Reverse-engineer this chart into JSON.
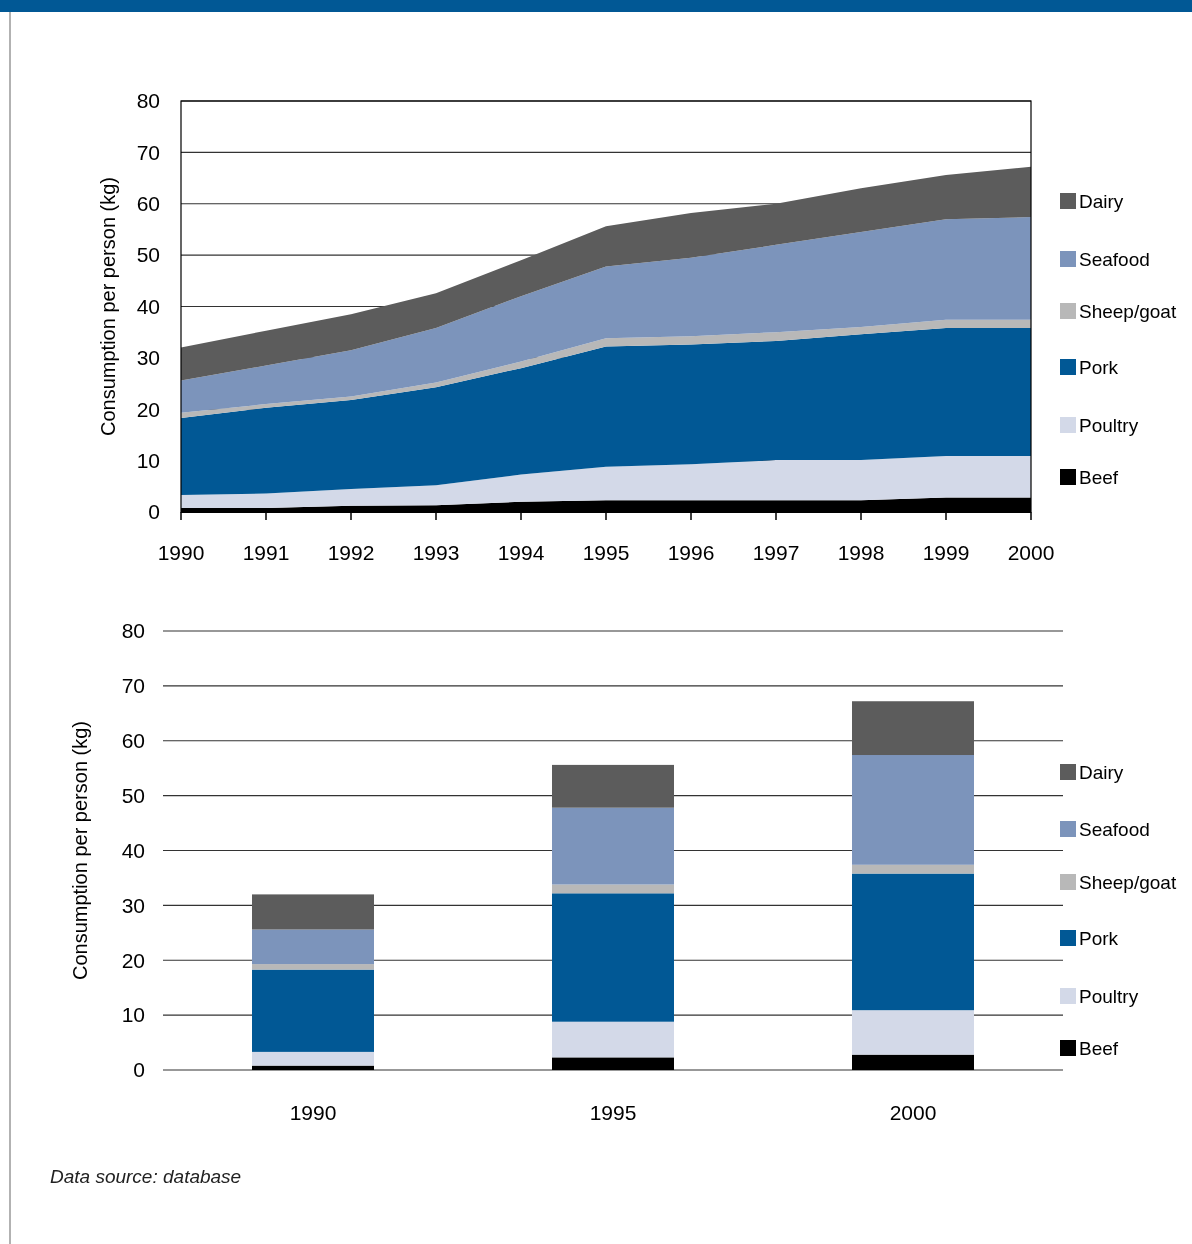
{
  "chart_data": [
    {
      "type": "area",
      "stacked": true,
      "ylabel": "Consumption per person (kg)",
      "x": [
        1990,
        1991,
        1992,
        1993,
        1994,
        1995,
        1996,
        1997,
        1998,
        1999,
        2000
      ],
      "xlim": [
        1990,
        2000
      ],
      "xticks": [
        1990,
        1991,
        1992,
        1993,
        1994,
        1995,
        1996,
        1997,
        1998,
        1999,
        2000
      ],
      "ylim": [
        0,
        80
      ],
      "yticks": [
        0,
        10,
        20,
        30,
        40,
        50,
        60,
        70,
        80
      ],
      "grid": "y",
      "legend": "right",
      "series": [
        {
          "name": "Beef",
          "color": "#000000",
          "values": [
            0.8,
            0.8,
            1.2,
            1.3,
            2.0,
            2.3,
            2.3,
            2.3,
            2.3,
            2.8,
            2.8
          ]
        },
        {
          "name": "Poultry",
          "color": "#d3d9e8",
          "values": [
            2.5,
            2.8,
            3.3,
            3.9,
            5.3,
            6.5,
            7.0,
            7.8,
            7.8,
            8.1,
            8.1
          ]
        },
        {
          "name": "Pork",
          "color": "#015895",
          "values": [
            15.0,
            16.7,
            17.3,
            19.1,
            20.7,
            23.4,
            23.3,
            23.2,
            24.5,
            24.9,
            24.9
          ]
        },
        {
          "name": "Sheep/goat",
          "color": "#b8b8b8",
          "values": [
            1.0,
            0.7,
            0.7,
            0.9,
            1.3,
            1.6,
            1.6,
            1.7,
            1.4,
            1.6,
            1.6
          ]
        },
        {
          "name": "Seafood",
          "color": "#7c94bb",
          "values": [
            6.3,
            7.5,
            9.0,
            10.6,
            12.7,
            14.0,
            15.3,
            17.0,
            18.5,
            19.6,
            20.0
          ]
        },
        {
          "name": "Dairy",
          "color": "#5c5c5c",
          "values": [
            6.4,
            6.8,
            7.0,
            6.8,
            7.0,
            7.8,
            8.7,
            8.0,
            8.5,
            8.6,
            9.8
          ]
        }
      ]
    },
    {
      "type": "bar",
      "stacked": true,
      "ylabel": "Consumption per person (kg)",
      "categories": [
        "1990",
        "1995",
        "2000"
      ],
      "ylim": [
        0,
        80
      ],
      "yticks": [
        0,
        10,
        20,
        30,
        40,
        50,
        60,
        70,
        80
      ],
      "grid": "y",
      "legend": "right",
      "annotations": [
        "Data source:  database"
      ],
      "series": [
        {
          "name": "Beef",
          "color": "#000000",
          "values": [
            0.8,
            2.3,
            2.8
          ]
        },
        {
          "name": "Poultry",
          "color": "#d3d9e8",
          "values": [
            2.5,
            6.5,
            8.1
          ]
        },
        {
          "name": "Pork",
          "color": "#015895",
          "values": [
            15.0,
            23.4,
            24.9
          ]
        },
        {
          "name": "Sheep/goat",
          "color": "#b8b8b8",
          "values": [
            1.0,
            1.6,
            1.6
          ]
        },
        {
          "name": "Seafood",
          "color": "#7c94bb",
          "values": [
            6.3,
            14.0,
            20.0
          ]
        },
        {
          "name": "Dairy",
          "color": "#5c5c5c",
          "values": [
            6.4,
            7.8,
            9.8
          ]
        }
      ]
    }
  ]
}
